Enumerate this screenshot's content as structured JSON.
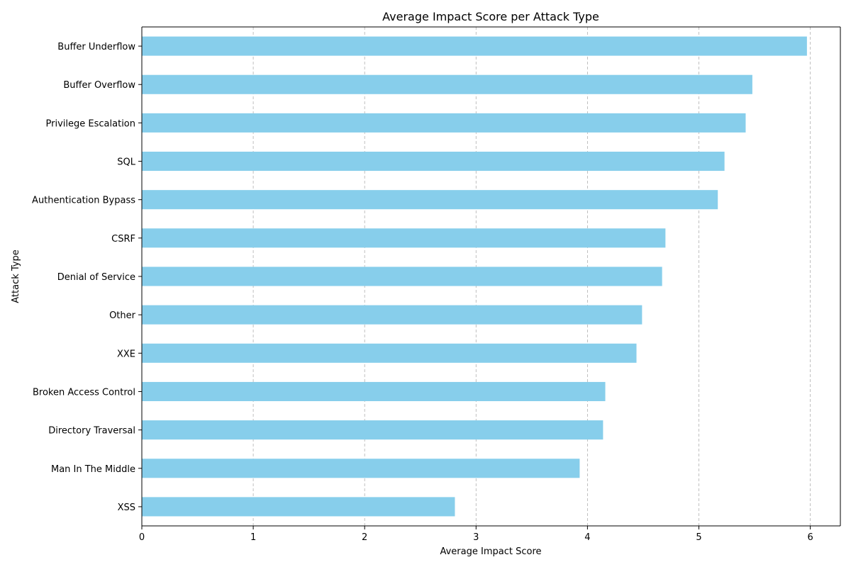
{
  "chart_data": {
    "type": "bar",
    "orientation": "horizontal",
    "title": "Average Impact Score per Attack Type",
    "xlabel": "Average Impact Score",
    "ylabel": "Attack Type",
    "xlim": [
      0,
      6.27
    ],
    "xticks": [
      0,
      1,
      2,
      3,
      4,
      5,
      6
    ],
    "grid": "x-dashed",
    "bar_color": "#87ceeb",
    "categories": [
      "Buffer Underflow",
      "Buffer Overflow",
      "Privilege Escalation",
      "SQL",
      "Authentication Bypass",
      "CSRF",
      "Denial of Service",
      "Other",
      "XXE",
      "Broken Access Control",
      "Directory Traversal",
      "Man In The Middle",
      "XSS"
    ],
    "values": [
      5.97,
      5.48,
      5.42,
      5.23,
      5.17,
      4.7,
      4.67,
      4.49,
      4.44,
      4.16,
      4.14,
      3.93,
      2.81
    ]
  }
}
